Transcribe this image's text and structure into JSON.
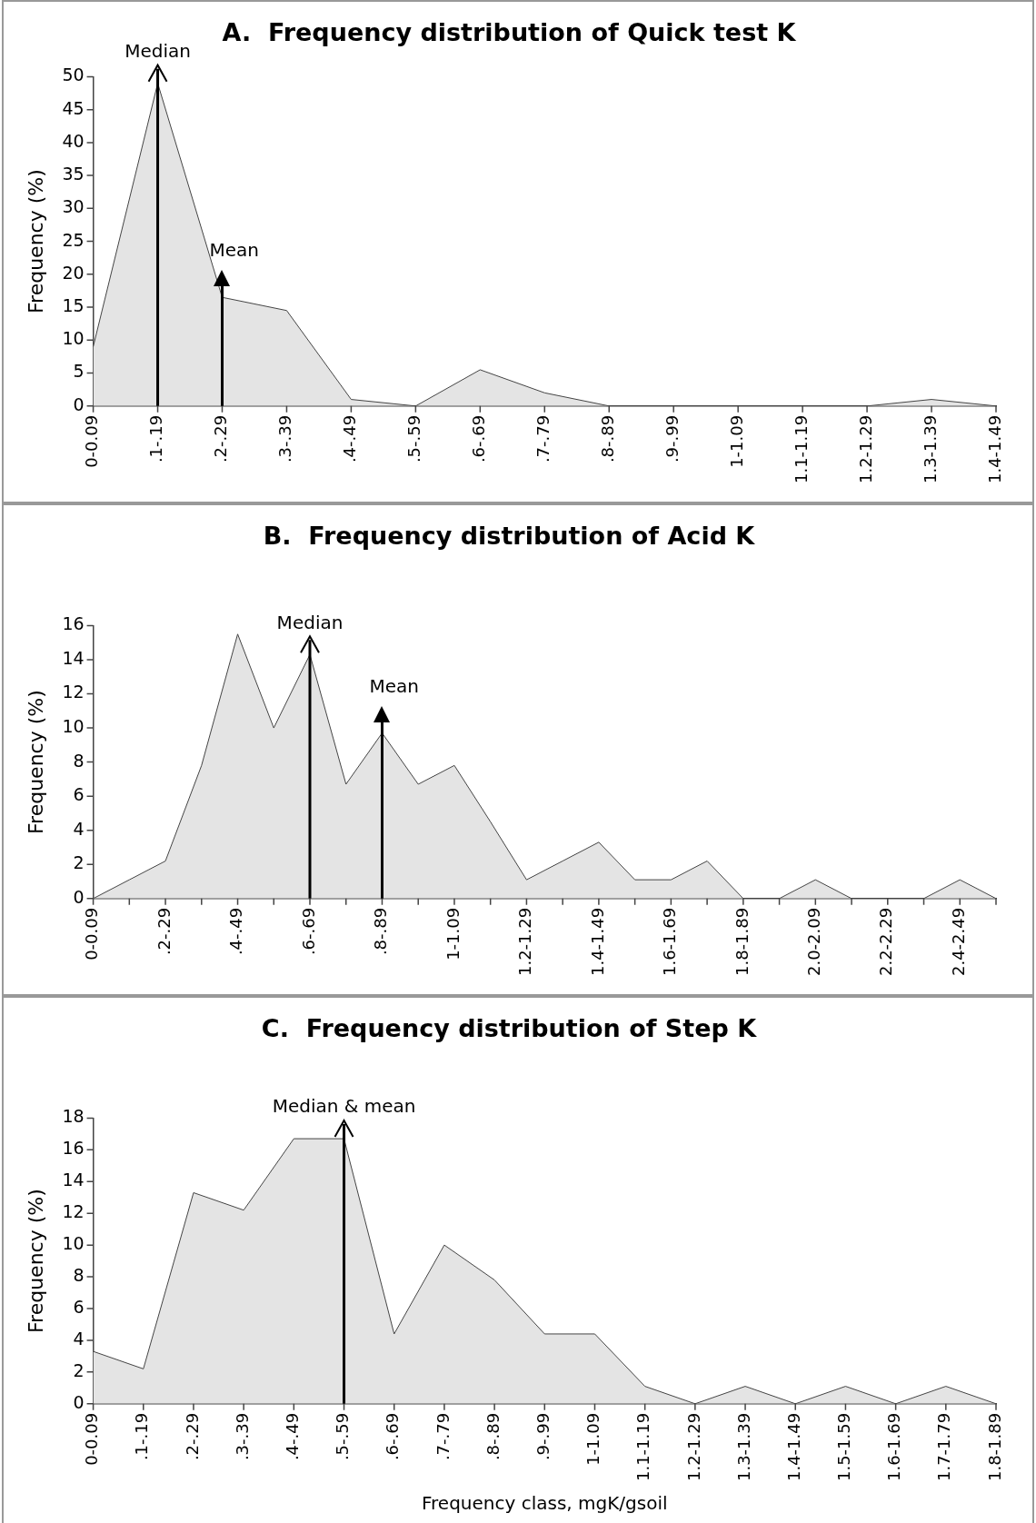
{
  "chart_data": [
    {
      "type": "area",
      "title": "A.  Frequency distribution of Quick test K",
      "ylabel": "Frequency (%)",
      "categories": [
        "0-0.09",
        ".1-.19",
        ".2-.29",
        ".3-.39",
        ".4-.49",
        ".5-.59",
        ".6-.69",
        ".7-.79",
        ".8-.89",
        ".9-.99",
        "1-1.09",
        "1.1-1.19",
        "1.2-1.29",
        "1.3-1.39",
        "1.4-1.49"
      ],
      "values": [
        9,
        49,
        16.5,
        14.5,
        1,
        0,
        5.5,
        2,
        0,
        0,
        0,
        0,
        0,
        1,
        0
      ],
      "color": "#e4e4e4",
      "ylim": [
        0,
        50
      ],
      "yticks": [
        0,
        5,
        10,
        15,
        20,
        25,
        30,
        35,
        40,
        45,
        50
      ],
      "grid": false,
      "legend": false,
      "marker": "none",
      "ref_lines": [
        {
          "axis": "x",
          "value": ".1-.19",
          "label": "Median"
        },
        {
          "axis": "x",
          "value": ".2-.29",
          "label": "Mean"
        }
      ]
    },
    {
      "type": "area",
      "title": "B.  Frequency distribution of Acid K",
      "ylabel": "Frequency (%)",
      "categories": [
        "0-0.09",
        null,
        ".2-.29",
        null,
        ".4-.49",
        null,
        ".6-.69",
        null,
        ".8-.89",
        null,
        "1-1.09",
        null,
        "1.2-1.29",
        null,
        "1.4-1.49",
        null,
        "1.6-1.69",
        null,
        "1.8-1.89",
        null,
        "2.0-2.09",
        null,
        "2.2-2.29",
        null,
        "2.4-2.49",
        null
      ],
      "values": [
        0,
        1.1,
        2.2,
        7.8,
        15.5,
        10,
        14.3,
        6.7,
        9.7,
        6.7,
        7.8,
        4.5,
        1.1,
        2.2,
        3.3,
        1.1,
        1.1,
        2.2,
        0,
        0,
        1.1,
        0,
        0,
        0,
        1.1,
        0
      ],
      "color": "#e4e4e4",
      "ylim": [
        0,
        16
      ],
      "yticks": [
        0,
        2,
        4,
        6,
        8,
        10,
        12,
        14,
        16
      ],
      "grid": false,
      "legend": false,
      "marker": "none",
      "ref_lines": [
        {
          "axis": "x",
          "value": ".6-.69",
          "label": "Median"
        },
        {
          "axis": "x",
          "value": ".8-.89",
          "label": "Mean"
        }
      ]
    },
    {
      "type": "area",
      "title": "C.  Frequency distribution of Step K",
      "ylabel": "Frequency (%)",
      "xlabel": "Frequency class, mgK/gsoil",
      "categories": [
        "0-0.09",
        ".1-.19",
        ".2-.29",
        ".3-.39",
        ".4-.49",
        ".5-.59",
        ".6-.69",
        ".7-.79",
        ".8-.89",
        ".9-.99",
        "1-1.09",
        "1.1-1.19",
        "1.2-1.29",
        "1.3-1.39",
        "1.4-1.49",
        "1.5-1.59",
        "1.6-1.69",
        "1.7-1.79",
        "1.8-1.89"
      ],
      "values": [
        3.3,
        2.2,
        13.3,
        12.2,
        16.7,
        16.7,
        4.4,
        10,
        7.8,
        4.4,
        4.4,
        1.1,
        0,
        1.1,
        0,
        1.1,
        0,
        1.1,
        0
      ],
      "color": "#e4e4e4",
      "ylim": [
        0,
        18
      ],
      "yticks": [
        0,
        2,
        4,
        6,
        8,
        10,
        12,
        14,
        16,
        18
      ],
      "grid": false,
      "legend": false,
      "marker": "none",
      "ref_lines": [
        {
          "axis": "x",
          "value": ".5-.59",
          "label": "Median & mean"
        }
      ]
    }
  ]
}
